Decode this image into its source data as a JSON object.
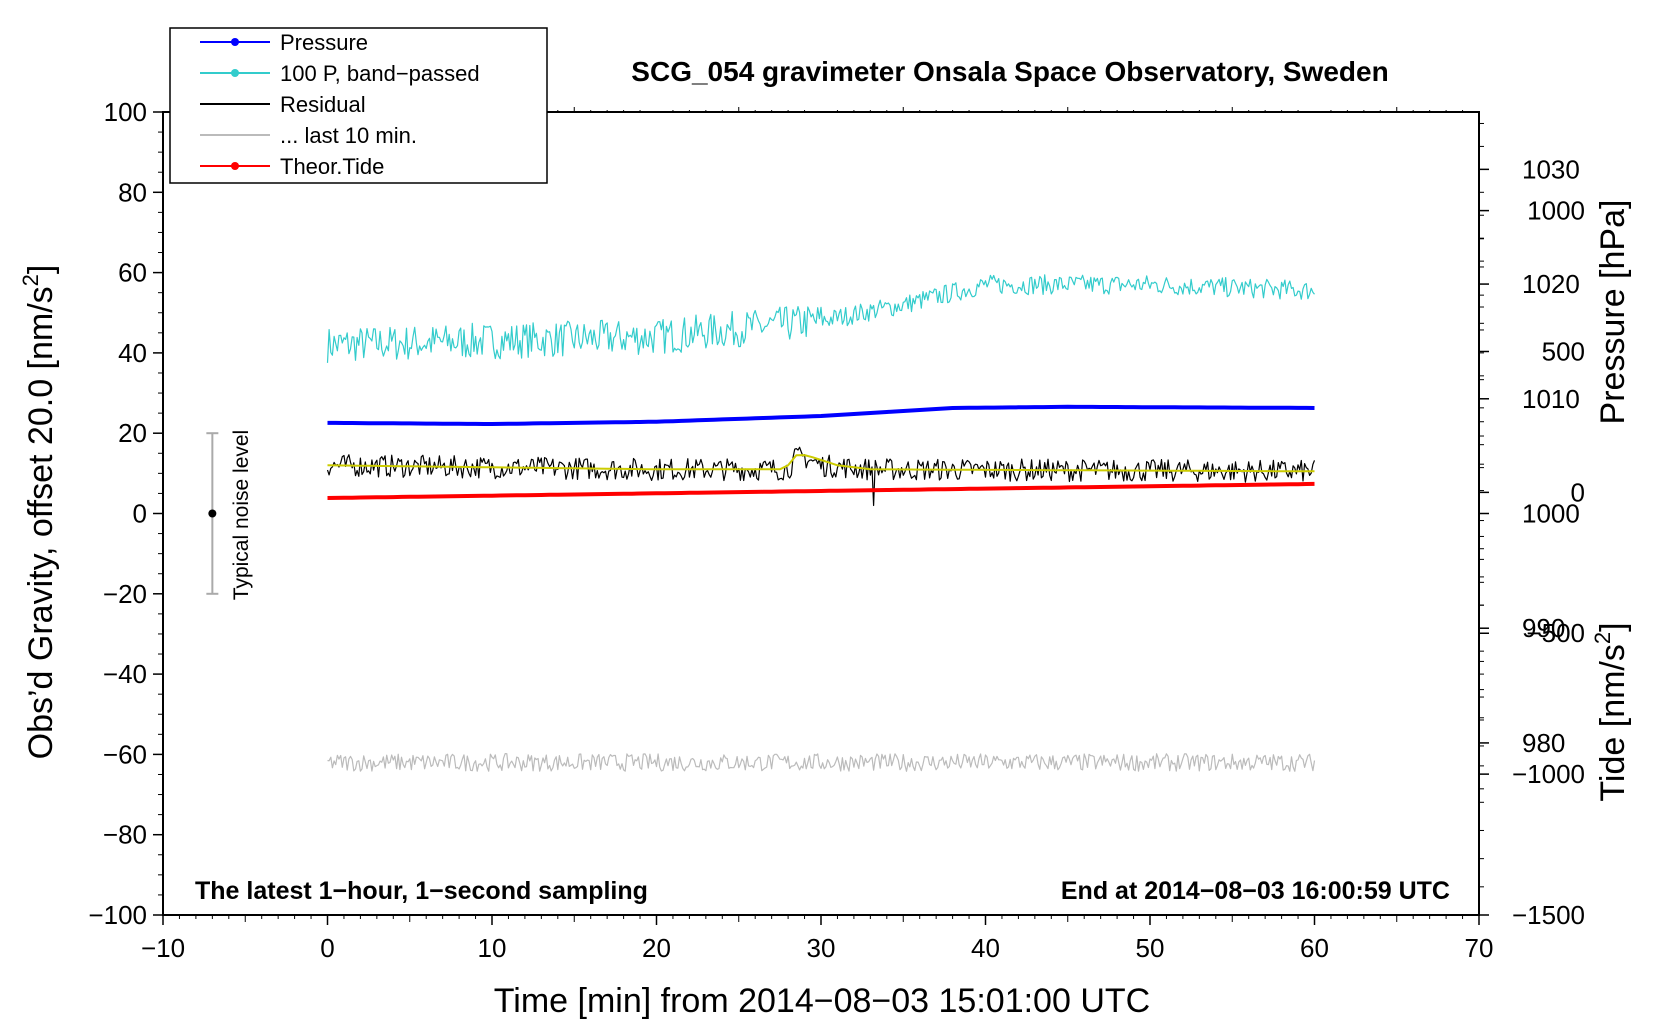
{
  "chart_data": {
    "type": "line",
    "title": "SCG_054 gravimeter Onsala Space Observatory, Sweden",
    "xlabel": "Time [min] from 2014−08−03 15:01:00 UTC",
    "ylabel_left": "Obs’d Gravity, offset 20.0 [nm/s²]",
    "ylabel_left_main": "Obs’d Gravity, offset 20.0 [nm/s",
    "ylabel_left_sup": "2",
    "ylabel_left_end": "]",
    "ylabel_pressure": "Pressure [hPa]",
    "ylabel_tide_main": "Tide [nm/s",
    "ylabel_tide_sup": "2",
    "ylabel_tide_end": "]",
    "xlim": [
      -10,
      70
    ],
    "ylim_left": [
      -100,
      100
    ],
    "pressure_axis_range": [
      1035,
      965
    ],
    "tide_axis_range": [
      -1500,
      1350
    ],
    "x_ticks": [
      "−10",
      "0",
      "10",
      "20",
      "30",
      "40",
      "50",
      "60",
      "70"
    ],
    "x_tick_values": [
      -10,
      0,
      10,
      20,
      30,
      40,
      50,
      60,
      70
    ],
    "y_left_ticks": [
      "100",
      "80",
      "60",
      "40",
      "20",
      "0",
      "−20",
      "−40",
      "−60",
      "−80",
      "−100"
    ],
    "y_left_tick_values": [
      100,
      80,
      60,
      40,
      20,
      0,
      -20,
      -40,
      -60,
      -80,
      -100
    ],
    "pressure_ticks": [
      "1030",
      "1020",
      "1010",
      "1000",
      "990",
      "980"
    ],
    "pressure_tick_values": [
      1030,
      1020,
      1010,
      1000,
      990,
      980
    ],
    "tide_ticks": [
      "1000",
      "500",
      "0",
      "−500",
      "−1000",
      "−1500"
    ],
    "tide_tick_values": [
      1000,
      500,
      0,
      -500,
      -1000,
      -1500
    ],
    "legend": [
      {
        "label": "Pressure",
        "color": "#0000ff",
        "marker": true
      },
      {
        "label": "100 P, band−passed",
        "color": "#33cccc",
        "marker": true
      },
      {
        "label": "Residual",
        "color": "#000000",
        "marker": false
      },
      {
        "label": "... last 10 min.",
        "color": "#bbbbbb",
        "marker": false
      },
      {
        "label": "Theor.Tide",
        "color": "#ff0000",
        "marker": true
      }
    ],
    "series": [
      {
        "name": "Pressure",
        "axis": "pressure",
        "color": "#0000ff",
        "x": [
          0,
          10,
          20,
          30,
          38,
          45,
          60
        ],
        "y": [
          1007.9,
          1007.8,
          1008.0,
          1008.5,
          1009.2,
          1009.3,
          1009.2
        ]
      },
      {
        "name": "100 P, band−passed",
        "axis": "left",
        "color": "#33cccc",
        "noise": 4.5,
        "x": [
          0,
          10,
          20,
          25,
          30,
          35,
          40,
          50,
          60
        ],
        "y": [
          42,
          43,
          44,
          46,
          48,
          52,
          57,
          57,
          55.5
        ]
      },
      {
        "name": "Residual",
        "axis": "left",
        "color": "#000000",
        "noise": 2.8,
        "x": [
          0,
          10,
          20,
          28,
          28.5,
          29,
          30,
          33,
          60
        ],
        "y": [
          12,
          11.5,
          11,
          11,
          14,
          14,
          12,
          11,
          10.5
        ]
      },
      {
        "name": "Residual smoothed",
        "axis": "left",
        "color": "#cccc00",
        "x": [
          0,
          10,
          20,
          27.8,
          28.6,
          29.5,
          31,
          33,
          60
        ],
        "y": [
          12,
          11.5,
          11,
          11,
          15,
          14,
          12,
          11,
          10.5
        ]
      },
      {
        "name": "... last 10 min.",
        "axis": "left",
        "color": "#bbbbbb",
        "noise": 2.2,
        "x": [
          0,
          60
        ],
        "y": [
          -62,
          -62
        ]
      },
      {
        "name": "Theor.Tide",
        "axis": "tide",
        "color": "#ff0000",
        "x": [
          0,
          60
        ],
        "y": [
          -20,
          30
        ]
      }
    ],
    "noise_bar": {
      "label": "Typical noise level",
      "x": -7,
      "center": 0,
      "low": -20,
      "high": 20
    },
    "annotations": {
      "bottom_left": "The latest 1−hour, 1−second sampling",
      "bottom_right": "End at 2014−08−03 16:00:59 UTC"
    }
  }
}
